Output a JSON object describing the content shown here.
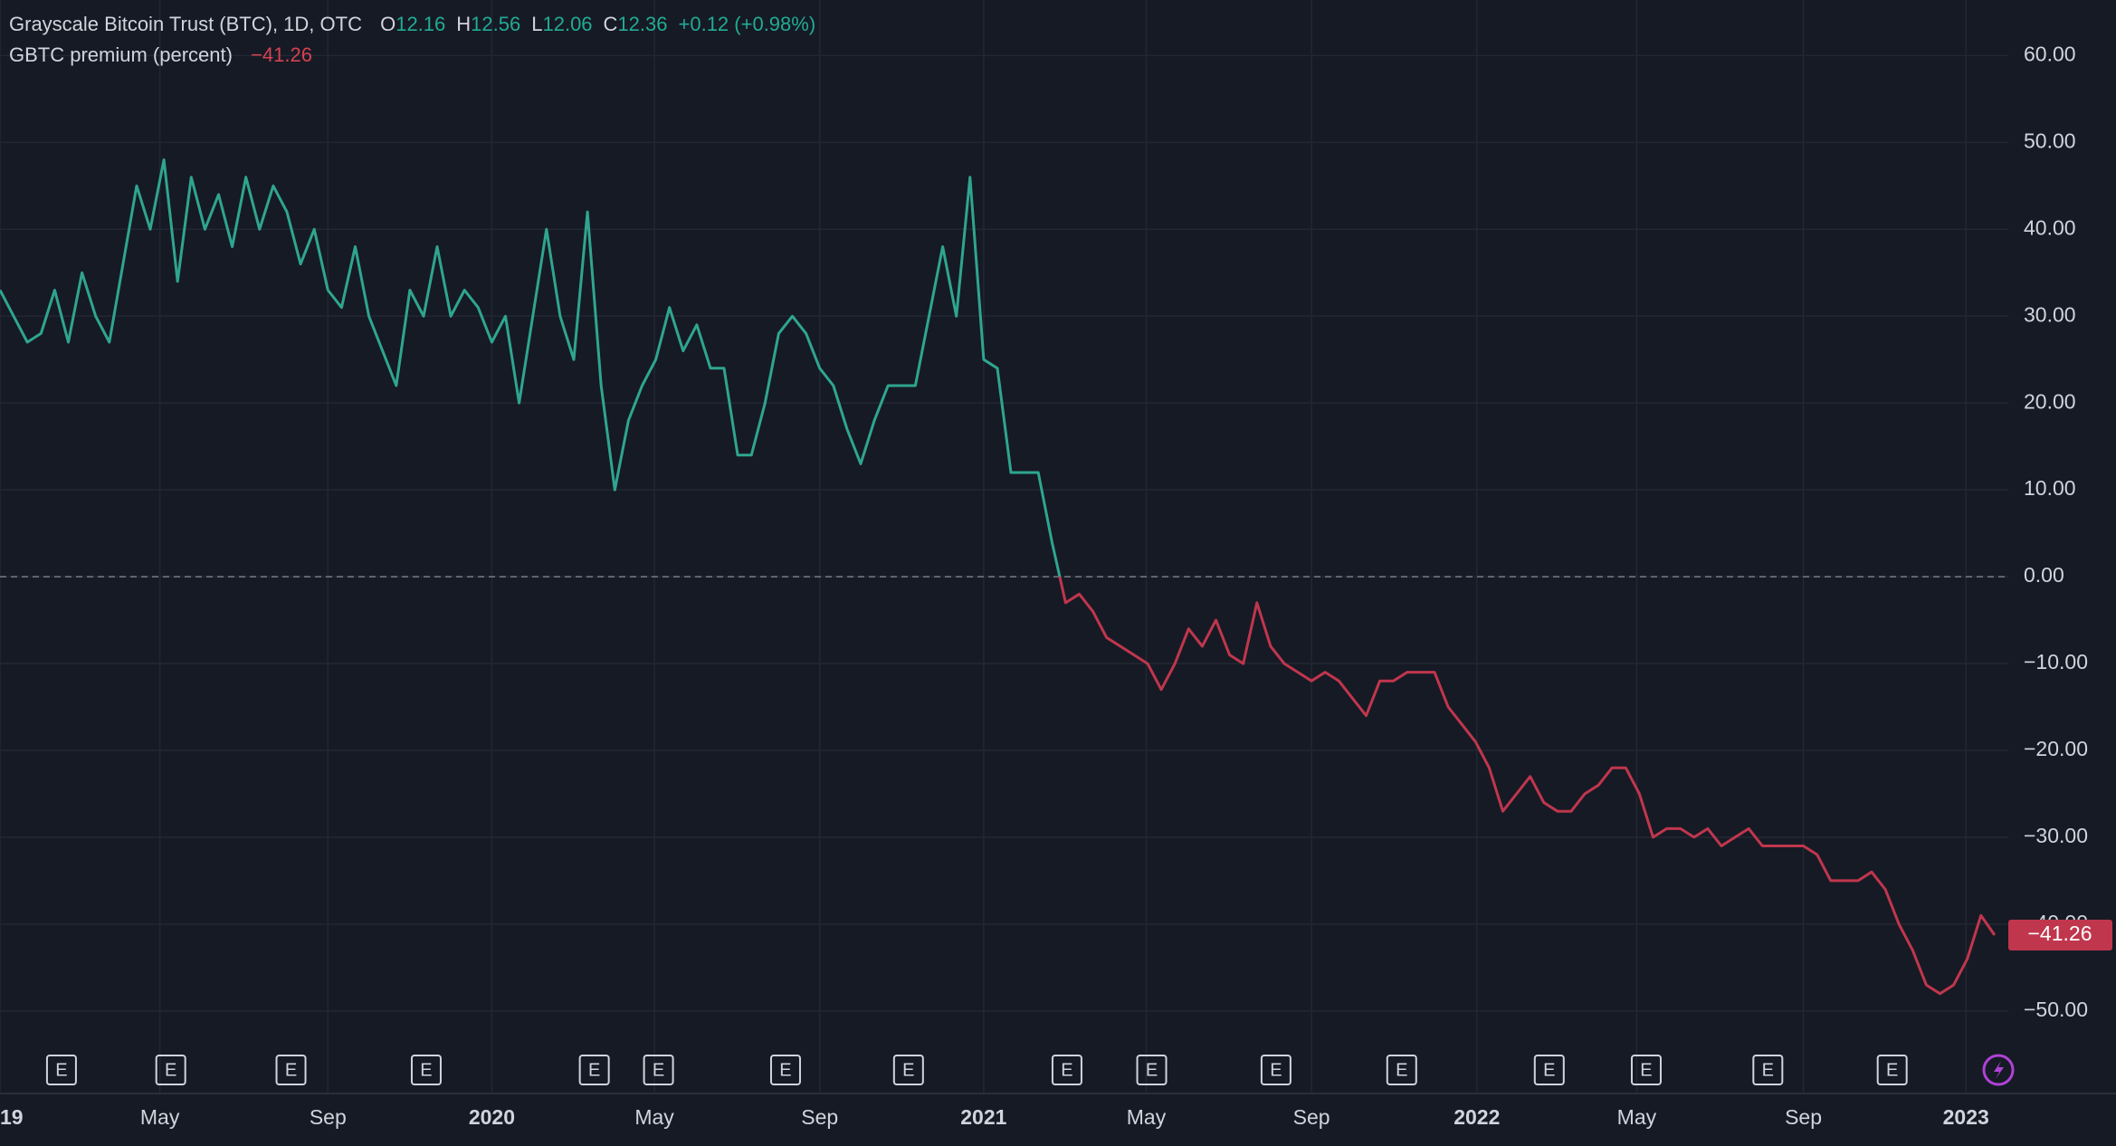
{
  "chart_data": {
    "type": "line",
    "title": "Grayscale Bitcoin Trust (BTC), 1D, OTC",
    "ohlc": [
      {
        "label": "O",
        "value": 12.16
      },
      {
        "label": "H",
        "value": 12.56
      },
      {
        "label": "L",
        "value": 12.06
      },
      {
        "label": "C",
        "value": 12.36
      }
    ],
    "change": "+0.12 (+0.98%)",
    "series": [
      {
        "name": "GBTC premium (percent)",
        "up_color": "#2fa58f",
        "down_color": "#c0364d",
        "last_value_label": "−41.26",
        "values": [
          33,
          30,
          27,
          28,
          33,
          27,
          35,
          30,
          27,
          36,
          45,
          40,
          48,
          34,
          46,
          40,
          44,
          38,
          46,
          40,
          45,
          42,
          36,
          40,
          33,
          31,
          38,
          30,
          26,
          22,
          33,
          30,
          38,
          30,
          33,
          31,
          27,
          30,
          20,
          30,
          40,
          30,
          25,
          42,
          22,
          10,
          18,
          22,
          25,
          31,
          26,
          29,
          24,
          24,
          14,
          14,
          20,
          28,
          30,
          28,
          24,
          22,
          17,
          13,
          18,
          22,
          22,
          22,
          30,
          38,
          30,
          46,
          25,
          24,
          12,
          12,
          12,
          4,
          -3,
          -2,
          -4,
          -7,
          -8,
          -9,
          -10,
          -13,
          -10,
          -6,
          -8,
          -5,
          -9,
          -10,
          -3,
          -8,
          -10,
          -11,
          -12,
          -11,
          -12,
          -14,
          -16,
          -12,
          -12,
          -11,
          -11,
          -11,
          -15,
          -17,
          -19,
          -22,
          -27,
          -25,
          -23,
          -26,
          -27,
          -27,
          -25,
          -24,
          -22,
          -22,
          -25,
          -30,
          -29,
          -29,
          -30,
          -29,
          -31,
          -30,
          -29,
          -31,
          -31,
          -31,
          -31,
          -32,
          -35,
          -35,
          -35,
          -34,
          -36,
          -40,
          -43,
          -47,
          -48,
          -47,
          -44,
          -39,
          -41.26
        ]
      }
    ],
    "baseline": 0,
    "xlim": [
      0,
      147
    ],
    "xticks": [
      {
        "value": 0,
        "label": "19"
      },
      {
        "value": 11.7,
        "label": "May"
      },
      {
        "value": 24.0,
        "label": "Sep"
      },
      {
        "value": 36.0,
        "label": "2020"
      },
      {
        "value": 47.9,
        "label": "May"
      },
      {
        "value": 60.0,
        "label": "Sep"
      },
      {
        "value": 72.0,
        "label": "2021"
      },
      {
        "value": 83.9,
        "label": "May"
      },
      {
        "value": 96.0,
        "label": "Sep"
      },
      {
        "value": 108.1,
        "label": "2022"
      },
      {
        "value": 119.8,
        "label": "May"
      },
      {
        "value": 132.0,
        "label": "Sep"
      },
      {
        "value": 143.9,
        "label": "2023"
      }
    ],
    "ylim": [
      -59.5,
      66.4
    ],
    "yticks": [
      {
        "value": 60,
        "label": "60.00"
      },
      {
        "value": 50,
        "label": "50.00"
      },
      {
        "value": 40,
        "label": "40.00"
      },
      {
        "value": 30,
        "label": "30.00"
      },
      {
        "value": 20,
        "label": "20.00"
      },
      {
        "value": 10,
        "label": "10.00"
      },
      {
        "value": 0,
        "label": "0.00"
      },
      {
        "value": -10,
        "label": "−10.00"
      },
      {
        "value": -20,
        "label": "−20.00"
      },
      {
        "value": -30,
        "label": "−30.00"
      },
      {
        "value": -40,
        "label": "−40.00"
      },
      {
        "value": -50,
        "label": "−50.00"
      }
    ],
    "grid": true,
    "earnings": {
      "label": "E",
      "x": [
        4.5,
        12.5,
        21.3,
        31.2,
        43.5,
        48.2,
        57.5,
        66.5,
        78.1,
        84.3,
        93.4,
        102.6,
        113.4,
        120.5,
        129.4,
        138.5
      ]
    }
  }
}
